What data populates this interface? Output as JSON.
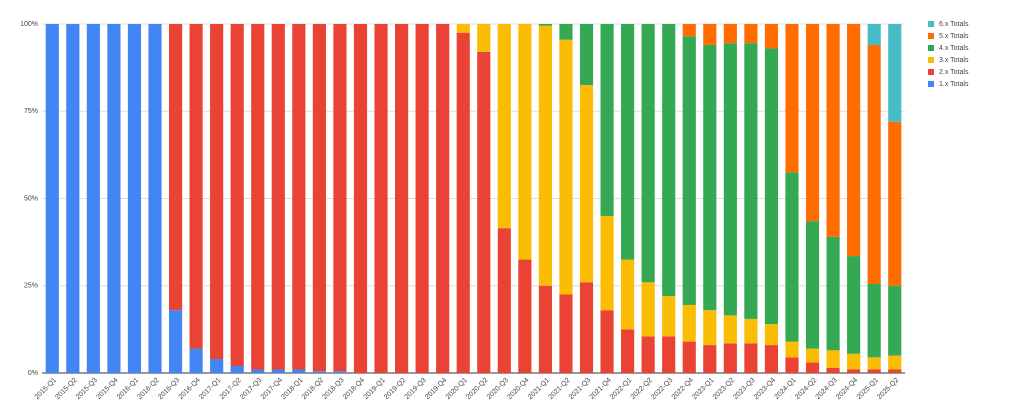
{
  "chart_data": {
    "type": "stacked_bar_percent",
    "categories": [
      "2015-Q1",
      "2015-Q2",
      "2015-Q3",
      "2015-Q4",
      "2016-Q1",
      "2016-Q2",
      "2016-Q3",
      "2016-Q4",
      "2017-Q1",
      "2017-Q2",
      "2017-Q3",
      "2017-Q4",
      "2018-Q1",
      "2018-Q2",
      "2018-Q3",
      "2018-Q4",
      "2019-Q1",
      "2019-Q2",
      "2019-Q3",
      "2019-Q4",
      "2020-Q1",
      "2020-Q2",
      "2020-Q3",
      "2020-Q4",
      "2021-Q1",
      "2021-Q2",
      "2021-Q3",
      "2021-Q4",
      "2022-Q1",
      "2022-Q2",
      "2022-Q3",
      "2022-Q4",
      "2023-Q1",
      "2023-Q2",
      "2023-Q3",
      "2023-Q4",
      "2024-Q1",
      "2024-Q2",
      "2024-Q3",
      "2024-Q4",
      "2025-Q1",
      "2025-Q2"
    ],
    "series": [
      {
        "name": "1.x Totals",
        "color": "#4285f4",
        "values": [
          100,
          100,
          100,
          100,
          100,
          100,
          18,
          7,
          4,
          2,
          1,
          1,
          1,
          0.5,
          0.5,
          0,
          0,
          0,
          0,
          0,
          0,
          0,
          0,
          0,
          0,
          0,
          0,
          0,
          0,
          0,
          0,
          0,
          0,
          0,
          0,
          0,
          0,
          0,
          0,
          0,
          0,
          0
        ]
      },
      {
        "name": "2.x Totals",
        "color": "#ea4335",
        "values": [
          0,
          0,
          0,
          0,
          0,
          0,
          82,
          93,
          96,
          98,
          99,
          99,
          99,
          99.5,
          99.5,
          100,
          100,
          100,
          100,
          100,
          97.5,
          92,
          41.5,
          32.5,
          25,
          22.5,
          26,
          18,
          12.5,
          10.5,
          10.5,
          9,
          8,
          8.5,
          8.5,
          8,
          4.5,
          3,
          1.5,
          1,
          1,
          1
        ]
      },
      {
        "name": "3.x Totals",
        "color": "#fbbc04",
        "values": [
          0,
          0,
          0,
          0,
          0,
          0,
          0,
          0,
          0,
          0,
          0,
          0,
          0,
          0,
          0,
          0,
          0,
          0,
          0,
          0,
          2.5,
          8,
          58.5,
          67.5,
          74.5,
          73,
          56.5,
          27,
          20,
          15.5,
          11.5,
          10.5,
          10,
          8,
          7,
          6,
          4.5,
          4,
          5,
          4.5,
          3.5,
          4
        ]
      },
      {
        "name": "4.x Totals",
        "color": "#34a853",
        "values": [
          0,
          0,
          0,
          0,
          0,
          0,
          0,
          0,
          0,
          0,
          0,
          0,
          0,
          0,
          0,
          0,
          0,
          0,
          0,
          0,
          0,
          0,
          0,
          0,
          0.5,
          4.5,
          17.5,
          55,
          67.5,
          74,
          78,
          77,
          76,
          78,
          79,
          79,
          48.5,
          36.5,
          32.5,
          28,
          21,
          20
        ]
      },
      {
        "name": "5.x Totals",
        "color": "#ff6d01",
        "values": [
          0,
          0,
          0,
          0,
          0,
          0,
          0,
          0,
          0,
          0,
          0,
          0,
          0,
          0,
          0,
          0,
          0,
          0,
          0,
          0,
          0,
          0,
          0,
          0,
          0,
          0,
          0,
          0,
          0,
          0,
          0,
          3.5,
          6,
          5.5,
          5.5,
          7,
          42.5,
          56.5,
          61,
          66.5,
          68.5,
          47
        ]
      },
      {
        "name": "6.x Totals",
        "color": "#46bdc6",
        "values": [
          0,
          0,
          0,
          0,
          0,
          0,
          0,
          0,
          0,
          0,
          0,
          0,
          0,
          0,
          0,
          0,
          0,
          0,
          0,
          0,
          0,
          0,
          0,
          0,
          0,
          0,
          0,
          0,
          0,
          0,
          0,
          0,
          0,
          0,
          0,
          0,
          0,
          0,
          0,
          0,
          6,
          28
        ]
      }
    ],
    "ylim": [
      0,
      100
    ],
    "yticks": [
      {
        "value": 0,
        "label": "0%"
      },
      {
        "value": 25,
        "label": "25%"
      },
      {
        "value": 50,
        "label": "50%"
      },
      {
        "value": 75,
        "label": "75%"
      },
      {
        "value": 100,
        "label": "100%"
      }
    ],
    "grid": true,
    "legend": "right"
  }
}
